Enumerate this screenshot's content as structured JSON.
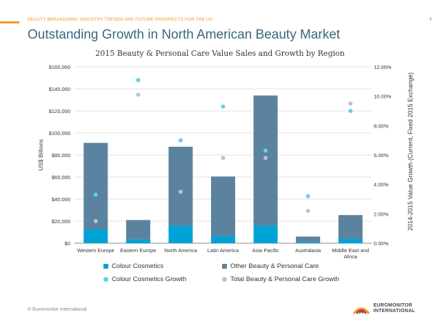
{
  "header": {
    "tag": "BEAUTY BREAKDOWN: INDUSTRY TRENDS AND FUTURE PROSPECTS FOR THE US",
    "page_number": "4",
    "title": "Outstanding Growth in North American Beauty Market",
    "accent_color": "#f7941d",
    "title_color": "#3a6680"
  },
  "chart_data": {
    "type": "bar",
    "stacked": true,
    "title": "2015 Beauty & Personal Care Value Sales and Growth by Region",
    "categories": [
      "Western Europe",
      "Eastern Europe",
      "North America",
      "Latin America",
      "Asia Pacific",
      "Australasia",
      "Middle East and Africa"
    ],
    "category_lines": [
      [
        "Western Europe"
      ],
      [
        "Eastern Europe"
      ],
      [
        "North America"
      ],
      [
        "Latin America"
      ],
      [
        "Asia Pacific"
      ],
      [
        "Australasia"
      ],
      [
        "Middle East and",
        "Africa"
      ]
    ],
    "ylabel": "US$ Billions",
    "ylim": [
      0,
      160000
    ],
    "yticks": [
      0,
      20000,
      40000,
      60000,
      80000,
      100000,
      120000,
      140000,
      160000
    ],
    "ytick_labels": [
      "$0",
      "$20,000",
      "$40,000",
      "$60,000",
      "$80,000",
      "$100,000",
      "$120,000",
      "$140,000",
      "$160,000"
    ],
    "y2label": "2014-2015 Value Growth (Current, Fixed 2015 Exchange)",
    "y2lim": [
      0,
      12
    ],
    "y2ticks": [
      0,
      2,
      4,
      6,
      8,
      10,
      12
    ],
    "y2tick_labels": [
      "0.00%",
      "2.00%",
      "4.00%",
      "6.00%",
      "8.00%",
      "10.00%",
      "12.00%"
    ],
    "series": [
      {
        "name": "Colour Cosmetics",
        "kind": "bar",
        "axis": "left",
        "color": "#00a3d6",
        "values": [
          12500,
          3500,
          16000,
          6500,
          16000,
          1000,
          4000
        ]
      },
      {
        "name": "Other Beauty & Personal Care",
        "kind": "bar",
        "axis": "left",
        "color": "#5b839f",
        "values": [
          78500,
          17500,
          71500,
          54000,
          118000,
          5000,
          21500
        ]
      },
      {
        "name": "Colour Cosmetics Growth",
        "kind": "dot",
        "axis": "right",
        "color": "#5bd3f0",
        "values": [
          3.3,
          11.1,
          7.0,
          9.3,
          6.3,
          3.2,
          9.0
        ]
      },
      {
        "name": "Total Beauty & Personal Care Growth",
        "kind": "dot",
        "axis": "right",
        "color": "#b8c4cc",
        "values": [
          1.5,
          10.1,
          3.5,
          5.8,
          5.8,
          2.2,
          9.5
        ]
      }
    ],
    "legend_position": "bottom",
    "grid": true
  },
  "legend": [
    {
      "label": "Colour Cosmetics",
      "color": "#00a3d6"
    },
    {
      "label": "Other Beauty & Personal Care",
      "color": "#5b839f"
    },
    {
      "label": "Colour Cosmetics Growth",
      "color": "#5bd3f0"
    },
    {
      "label": "Total Beauty & Personal Care Growth",
      "color": "#b8c4cc"
    }
  ],
  "footer": {
    "copyright": "© Euromonitor International",
    "logo_line1": "EUROMONITOR",
    "logo_line2": "INTERNATIONAL"
  }
}
